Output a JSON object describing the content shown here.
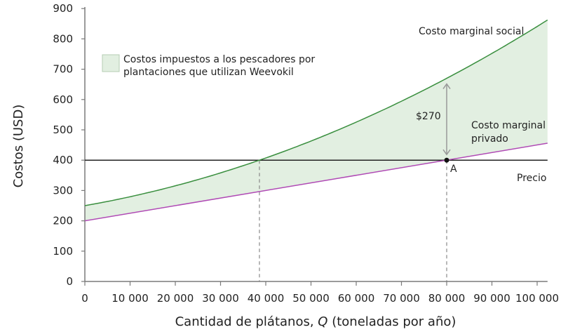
{
  "chart_data": {
    "type": "line",
    "title": "",
    "xlabel": "Cantidad de plátanos, Q (toneladas por año)",
    "xlabel_parts": {
      "before": "Cantidad de plátanos, ",
      "italic": "Q",
      "after": " (toneladas por año)"
    },
    "ylabel": "Costos (USD)",
    "xlim": [
      0,
      102300
    ],
    "ylim": [
      0,
      900
    ],
    "x_ticks": [
      0,
      10000,
      20000,
      30000,
      40000,
      50000,
      60000,
      70000,
      80000,
      90000,
      100000
    ],
    "x_tick_labels": [
      "0",
      "10 000",
      "20 000",
      "30 000",
      "40 000",
      "50 000",
      "60 000",
      "70 000",
      "80 000",
      "90 000",
      "100 000"
    ],
    "y_ticks": [
      0,
      100,
      200,
      300,
      400,
      500,
      600,
      700,
      800,
      900
    ],
    "y_tick_labels": [
      "0",
      "100",
      "200",
      "300",
      "400",
      "500",
      "600",
      "700",
      "800",
      "900"
    ],
    "grid": false,
    "series": [
      {
        "name": "Costo marginal social",
        "color": "#3a8f3f",
        "x": [
          0,
          10000,
          20000,
          30000,
          38600,
          50000,
          60000,
          70000,
          80000,
          90000,
          100000,
          102300
        ],
        "values": [
          250,
          280,
          316,
          358,
          400,
          463,
          526,
          595,
          670,
          752,
          841,
          862
        ]
      },
      {
        "name": "Costo marginal privado",
        "color": "#b04ab5",
        "x": [
          0,
          10000,
          20000,
          30000,
          40000,
          50000,
          60000,
          70000,
          80000,
          90000,
          100000,
          102300
        ],
        "values": [
          200,
          225,
          250,
          275,
          300,
          325,
          350,
          375,
          400,
          425,
          450,
          456
        ]
      },
      {
        "name": "Precio",
        "color": "#222222",
        "x": [
          0,
          102300
        ],
        "values": [
          400,
          400
        ]
      }
    ],
    "shaded_area": {
      "label": "Costos impuestos a los pescadores por plantaciones que utilizan Weevokil",
      "between": [
        "Costo marginal social",
        "Costo marginal privado"
      ],
      "fill": "#e2efe1",
      "stroke": "#a9c9a6"
    },
    "annotations": [
      {
        "text": "Costo marginal social",
        "x": 597,
        "y": 49
      },
      {
        "text": "Costo marginal",
        "x": 672,
        "y": 183
      },
      {
        "text": "privado",
        "x": 672,
        "y": 202
      },
      {
        "text": "Precio",
        "x": 737,
        "y": 258
      },
      {
        "text": "$270",
        "x": 593,
        "y": 170
      },
      {
        "text": "A",
        "x": 642,
        "y": 245
      }
    ],
    "points": [
      {
        "label": "A",
        "x": 80000,
        "y": 400
      }
    ],
    "dashed_verticals": [
      {
        "x": 38600,
        "y": 400
      },
      {
        "x": 80000,
        "y": 400
      }
    ],
    "double_arrow": {
      "x": 80000,
      "y_from": 400,
      "y_to": 670,
      "label": "$270",
      "color": "#999999"
    },
    "legend": {
      "position": "top-left",
      "items": [
        {
          "line1": "Costos impuestos a los pescadores por",
          "line2": "plantaciones que utilizan Weevokil"
        }
      ]
    }
  }
}
